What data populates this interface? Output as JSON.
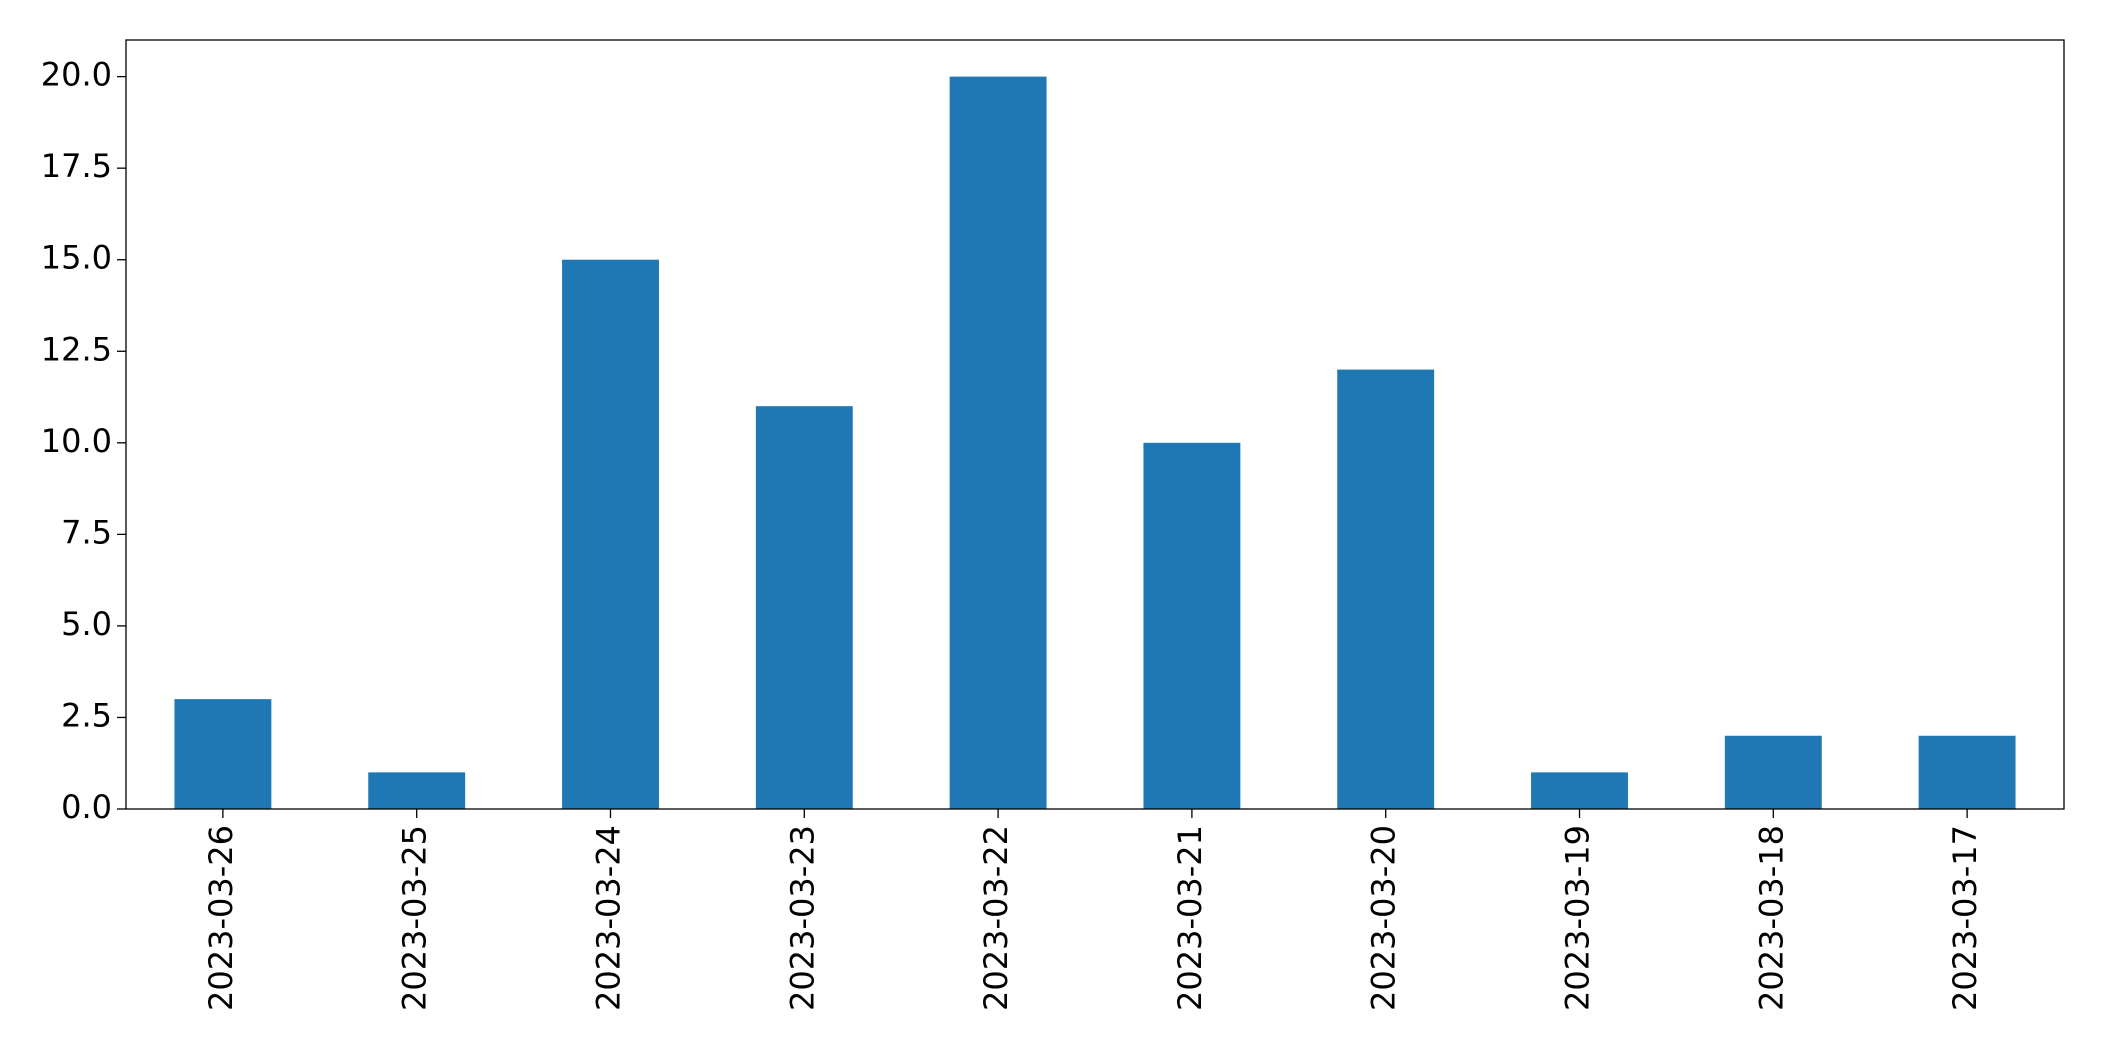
{
  "chart_data": {
    "type": "bar",
    "categories": [
      "2023-03-26",
      "2023-03-25",
      "2023-03-24",
      "2023-03-23",
      "2023-03-22",
      "2023-03-21",
      "2023-03-20",
      "2023-03-19",
      "2023-03-18",
      "2023-03-17"
    ],
    "values": [
      3,
      1,
      15,
      11,
      20,
      10,
      12,
      1,
      2,
      2
    ],
    "color": "#1f77b4",
    "ylim": [
      0,
      21
    ],
    "yticks": [
      {
        "value": 0,
        "label": "0.0"
      },
      2.5,
      {
        "value": 5,
        "label": "5.0"
      },
      7.5,
      {
        "value": 10,
        "label": "10.0"
      },
      12.5,
      {
        "value": 15,
        "label": "15.0"
      },
      17.5,
      {
        "value": 20,
        "label": "20.0"
      }
    ],
    "grid": false
  }
}
